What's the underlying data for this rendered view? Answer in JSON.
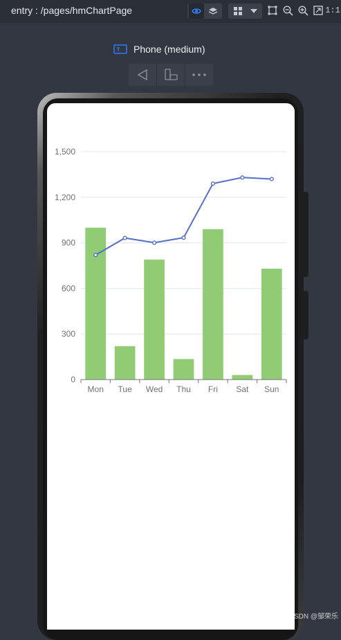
{
  "window": {
    "title": "entry : /pages/hmChartPage"
  },
  "toolbar": {
    "icons": [
      "eye-icon",
      "layers-icon",
      "grid-icon",
      "chevron-down-icon",
      "crop-icon",
      "zoom-out-icon",
      "zoom-in-icon",
      "fit-screen-icon",
      "one-to-one-icon"
    ],
    "one_to_one_label": "1:1",
    "accent_color": "#2f7cf6"
  },
  "device": {
    "label": "Phone (medium)",
    "actions": [
      "back-icon",
      "rotate-device-icon",
      "more-icon"
    ]
  },
  "chart_data": {
    "type": "bar",
    "categories": [
      "Mon",
      "Tue",
      "Wed",
      "Thu",
      "Fri",
      "Sat",
      "Sun"
    ],
    "series": [
      {
        "type": "bar",
        "values": [
          1000,
          220,
          790,
          135,
          990,
          30,
          730
        ],
        "color": "#91cc75"
      },
      {
        "type": "line",
        "values": [
          820,
          932,
          901,
          934,
          1290,
          1330,
          1320
        ],
        "color": "#5470c6"
      }
    ],
    "y_ticks": [
      "0",
      "300",
      "600",
      "900",
      "1,200",
      "1,500"
    ],
    "ylim": [
      0,
      1500
    ],
    "grid": true,
    "xlabel": "",
    "ylabel": ""
  },
  "watermark": "CSDN @邹荣乐"
}
